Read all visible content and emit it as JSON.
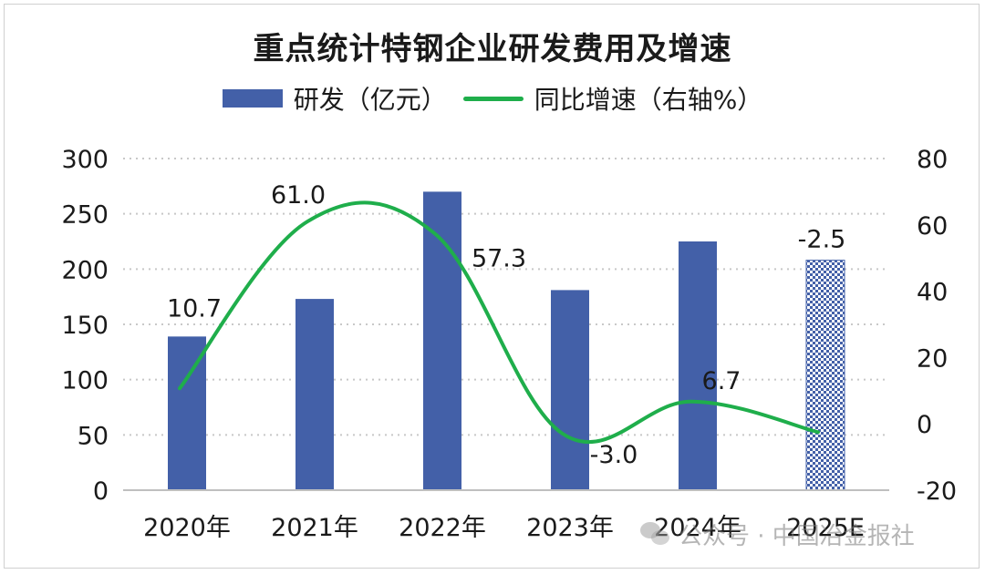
{
  "chart_data": {
    "type": "bar",
    "title": "重点统计特钢企业研发费用及增速",
    "categories": [
      "2020年",
      "2021年",
      "2022年",
      "2023年",
      "2024年",
      "2025E"
    ],
    "series": [
      {
        "name": "研发（亿元）",
        "type": "bar",
        "axis": "left",
        "values": [
          139,
          173,
          270,
          181,
          225,
          208
        ],
        "color": "#4360a8",
        "estimate_pattern_last": true
      },
      {
        "name": "同比增速（右轴%）",
        "type": "line",
        "axis": "right",
        "values": [
          10.7,
          61.0,
          57.3,
          -3.0,
          6.7,
          -2.5
        ],
        "value_labels": [
          "10.7",
          "61.0",
          "57.3",
          "-3.0",
          "6.7",
          "-2.5"
        ],
        "color": "#1fae4b"
      }
    ],
    "y_left": {
      "min": 0,
      "max": 300,
      "ticks": [
        "0",
        "50",
        "100",
        "150",
        "200",
        "250",
        "300"
      ]
    },
    "y_right": {
      "min": -20,
      "max": 80,
      "ticks": [
        "-20",
        "0",
        "20",
        "40",
        "60",
        "80"
      ]
    },
    "grid": "horizontal-dotted",
    "legend": "top-center"
  },
  "watermark": {
    "icon": "wechat-icon",
    "text": "公众号 · 中国冶金报社"
  }
}
